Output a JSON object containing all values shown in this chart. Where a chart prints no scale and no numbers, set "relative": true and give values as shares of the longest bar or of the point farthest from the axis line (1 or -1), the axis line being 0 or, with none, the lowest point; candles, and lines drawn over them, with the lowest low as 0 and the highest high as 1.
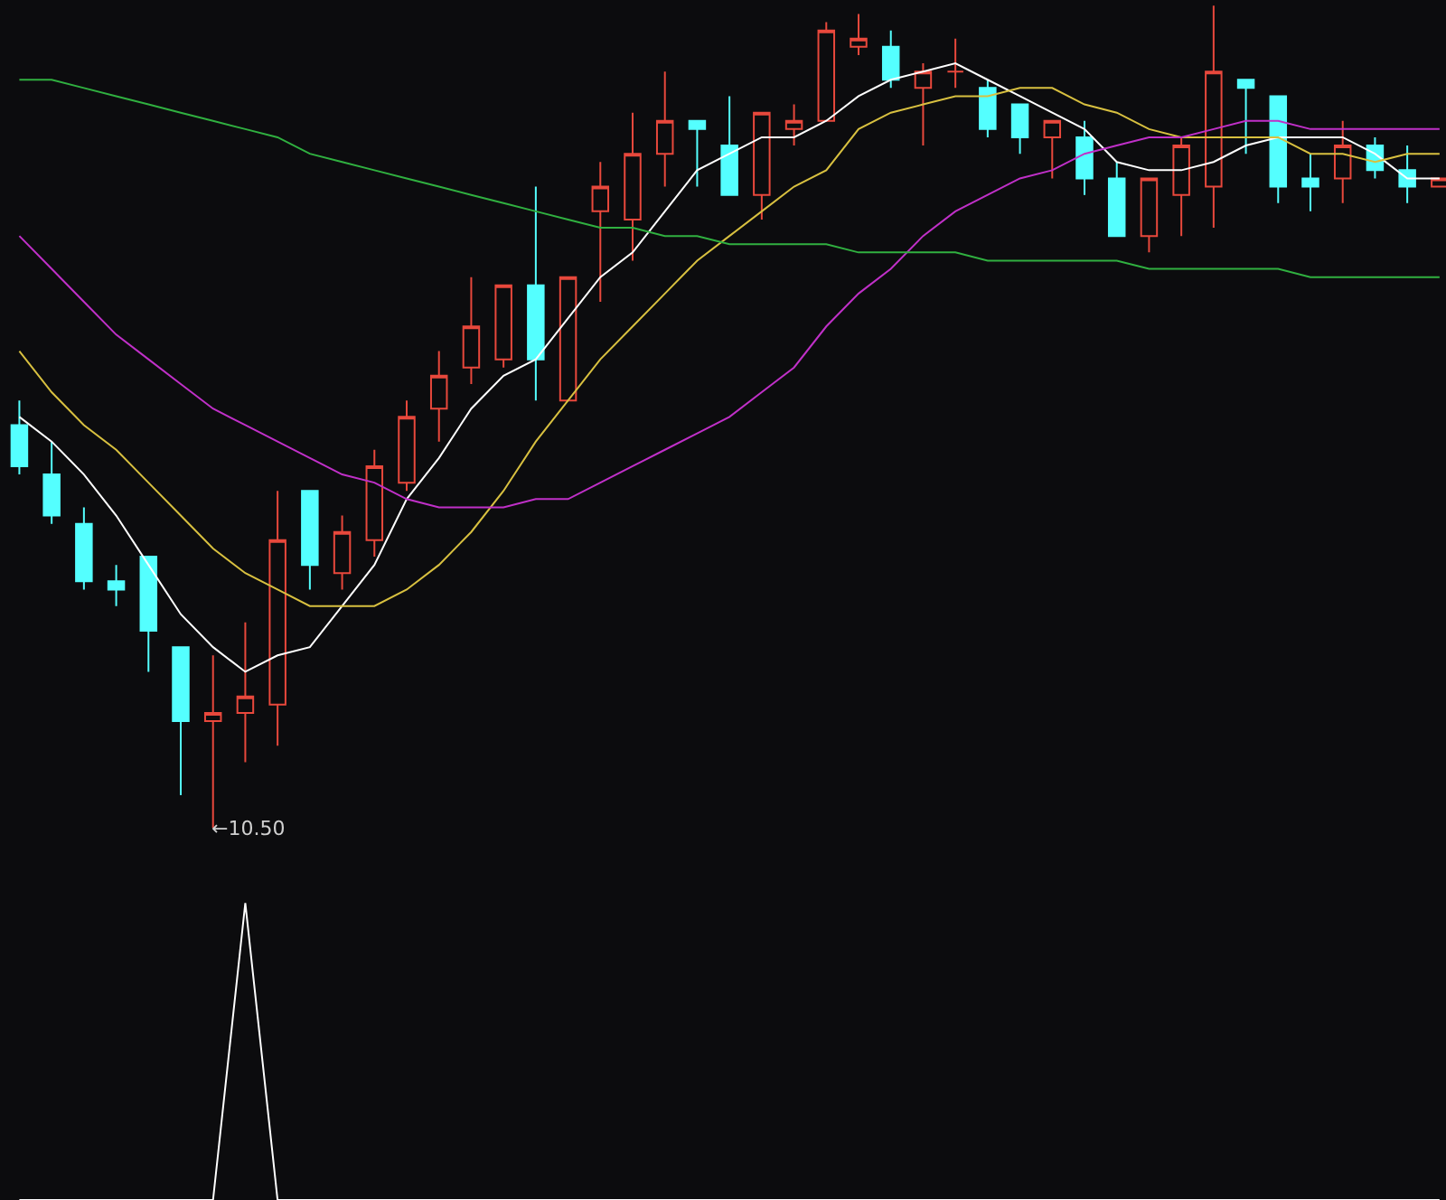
{
  "chart_data": [
    {
      "type": "candlestick",
      "relative": true,
      "categories": [
        null,
        null,
        null,
        null,
        null,
        null,
        null,
        null,
        null,
        null,
        null,
        null,
        null,
        null,
        null,
        null,
        null,
        null,
        null,
        null,
        null,
        null,
        null,
        null,
        null,
        null,
        null,
        null,
        null,
        null,
        null,
        null,
        null,
        null,
        null,
        null,
        null,
        null,
        null,
        null,
        null,
        null,
        null,
        null,
        null
      ],
      "ohlc": [
        [
          0.49,
          0.52,
          0.43,
          0.44
        ],
        [
          0.43,
          0.47,
          0.37,
          0.38
        ],
        [
          0.37,
          0.39,
          0.29,
          0.3
        ],
        [
          0.3,
          0.32,
          0.27,
          0.29
        ],
        [
          0.33,
          0.33,
          0.19,
          0.24
        ],
        [
          0.22,
          0.22,
          0.04,
          0.13
        ],
        [
          0.13,
          0.21,
          0,
          0.14
        ],
        [
          0.14,
          0.25,
          0.08,
          0.16
        ],
        [
          0.15,
          0.41,
          0.1,
          0.35
        ],
        [
          0.41,
          0.41,
          0.29,
          0.32
        ],
        [
          0.31,
          0.38,
          0.29,
          0.36
        ],
        [
          0.35,
          0.46,
          0.33,
          0.44
        ],
        [
          0.42,
          0.52,
          0.41,
          0.5
        ],
        [
          0.51,
          0.58,
          0.47,
          0.55
        ],
        [
          0.56,
          0.67,
          0.54,
          0.61
        ],
        [
          0.57,
          0.66,
          0.56,
          0.66
        ],
        [
          0.66,
          0.78,
          0.52,
          0.57
        ],
        [
          0.52,
          0.67,
          0.52,
          0.67
        ],
        [
          0.75,
          0.81,
          0.64,
          0.78
        ],
        [
          0.74,
          0.87,
          0.69,
          0.82
        ],
        [
          0.82,
          0.92,
          0.78,
          0.86
        ],
        [
          0.86,
          0.86,
          0.78,
          0.85
        ],
        [
          0.83,
          0.89,
          0.77,
          0.77
        ],
        [
          0.77,
          0.87,
          0.74,
          0.87
        ],
        [
          0.85,
          0.88,
          0.83,
          0.86
        ],
        [
          0.86,
          0.98,
          0.86,
          0.97
        ],
        [
          0.95,
          0.99,
          0.94,
          0.96
        ],
        [
          0.95,
          0.97,
          0.9,
          0.91
        ],
        [
          0.9,
          0.93,
          0.83,
          0.92
        ],
        [
          0.92,
          0.96,
          0.9,
          0.92
        ],
        [
          0.9,
          0.91,
          0.84,
          0.85
        ],
        [
          0.88,
          0.88,
          0.82,
          0.84
        ],
        [
          0.84,
          0.86,
          0.79,
          0.86
        ],
        [
          0.84,
          0.86,
          0.77,
          0.79
        ],
        [
          0.79,
          0.81,
          0.72,
          0.72
        ],
        [
          0.72,
          0.79,
          0.7,
          0.79
        ],
        [
          0.77,
          0.84,
          0.72,
          0.83
        ],
        [
          0.78,
          1,
          0.73,
          0.92
        ],
        [
          0.91,
          0.91,
          0.82,
          0.9
        ],
        [
          0.89,
          0.89,
          0.76,
          0.78
        ],
        [
          0.79,
          0.82,
          0.75,
          0.78
        ],
        [
          0.79,
          0.86,
          0.76,
          0.83
        ],
        [
          0.83,
          0.84,
          0.79,
          0.8
        ],
        [
          0.8,
          0.83,
          0.76,
          0.78
        ],
        [
          0.78,
          0.79,
          0.78,
          0.79
        ]
      ],
      "series": [
        {
          "type": "line",
          "color": "#ffffff",
          "values": [
            0.5,
            0.47,
            0.43,
            0.38,
            0.32,
            0.26,
            0.22,
            0.19,
            0.21,
            0.22,
            0.27,
            0.32,
            0.4,
            0.45,
            0.51,
            0.55,
            0.57,
            0.62,
            0.67,
            0.7,
            0.75,
            0.8,
            0.82,
            0.84,
            0.84,
            0.86,
            0.89,
            0.91,
            0.92,
            0.93,
            0.91,
            0.89,
            0.87,
            0.85,
            0.81,
            0.8,
            0.8,
            0.81,
            0.83,
            0.84,
            0.84,
            0.84,
            0.82,
            0.79,
            0.79
          ]
        },
        {
          "type": "line",
          "color": "#d8c040",
          "values": [
            0.58,
            0.53,
            0.49,
            0.46,
            0.42,
            0.38,
            0.34,
            0.31,
            0.29,
            0.27,
            0.27,
            0.27,
            0.29,
            0.32,
            0.36,
            0.41,
            0.47,
            0.52,
            0.57,
            0.61,
            0.65,
            0.69,
            0.72,
            0.75,
            0.78,
            0.8,
            0.85,
            0.87,
            0.88,
            0.89,
            0.89,
            0.9,
            0.9,
            0.88,
            0.87,
            0.85,
            0.84,
            0.84,
            0.84,
            0.84,
            0.82,
            0.82,
            0.81,
            0.82,
            0.82
          ]
        },
        {
          "type": "line",
          "color": "#c030c8",
          "values": [
            0.72,
            0.68,
            0.64,
            0.6,
            0.57,
            0.54,
            0.51,
            0.49,
            0.47,
            0.45,
            0.43,
            0.42,
            0.4,
            0.39,
            0.39,
            0.39,
            0.4,
            0.4,
            0.42,
            0.44,
            0.46,
            0.48,
            0.5,
            0.53,
            0.56,
            0.61,
            0.65,
            0.68,
            0.72,
            0.75,
            0.77,
            0.79,
            0.8,
            0.82,
            0.83,
            0.84,
            0.84,
            0.85,
            0.86,
            0.86,
            0.85,
            0.85,
            0.85,
            0.85,
            0.85
          ]
        },
        {
          "type": "line",
          "color": "#30b040",
          "values": [
            0.91,
            0.91,
            0.9,
            0.89,
            0.88,
            0.87,
            0.86,
            0.85,
            0.84,
            0.82,
            0.81,
            0.8,
            0.79,
            0.78,
            0.77,
            0.76,
            0.75,
            0.74,
            0.73,
            0.73,
            0.72,
            0.72,
            0.71,
            0.71,
            0.71,
            0.71,
            0.7,
            0.7,
            0.7,
            0.7,
            0.69,
            0.69,
            0.69,
            0.69,
            0.69,
            0.68,
            0.68,
            0.68,
            0.68,
            0.68,
            0.67,
            0.67,
            0.67,
            0.67,
            0.67
          ]
        }
      ],
      "annotations": [
        "←10.50"
      ]
    },
    {
      "type": "line",
      "relative": true,
      "categories": [
        null,
        null,
        null,
        null,
        null,
        null,
        null,
        null,
        null,
        null,
        null,
        null,
        null,
        null,
        null,
        null,
        null,
        null,
        null,
        null,
        null,
        null,
        null,
        null,
        null,
        null,
        null,
        null,
        null,
        null,
        null,
        null,
        null,
        null,
        null,
        null,
        null,
        null,
        null,
        null,
        null,
        null,
        null,
        null,
        null
      ],
      "series": [
        {
          "color": "#ffffff",
          "values": [
            0,
            0,
            0,
            0,
            0,
            0,
            0,
            1,
            0,
            0,
            0,
            0,
            0,
            0,
            0,
            0,
            0,
            0,
            0,
            0,
            0,
            0,
            0,
            0,
            0,
            0,
            0,
            0,
            0,
            0,
            0,
            0,
            0,
            0,
            0,
            0,
            0,
            0,
            0,
            0,
            0,
            0,
            0,
            0,
            0
          ]
        }
      ]
    }
  ]
}
